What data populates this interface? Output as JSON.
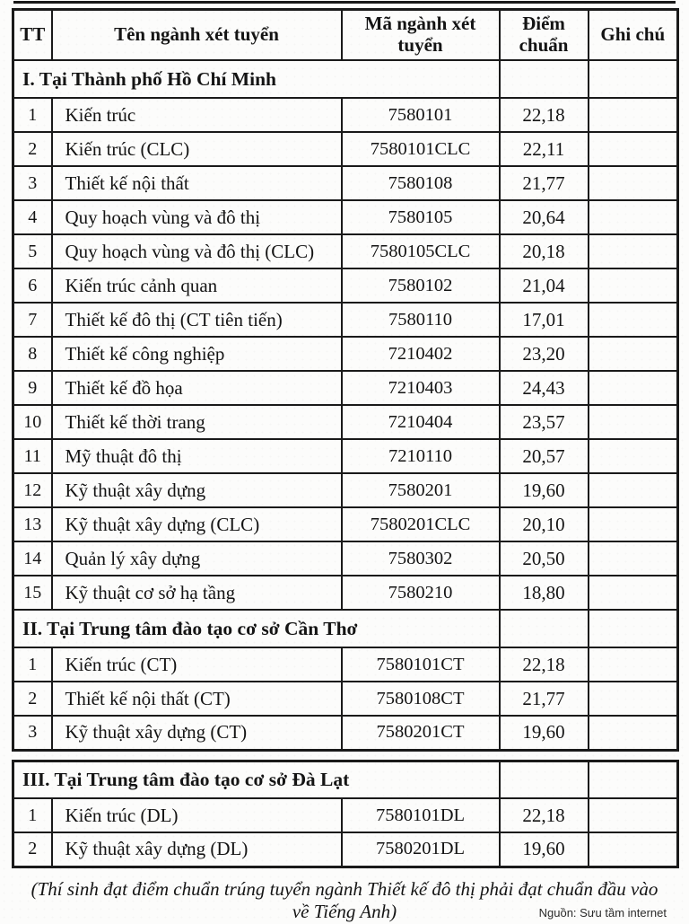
{
  "table": {
    "headers": [
      "TT",
      "Tên ngành xét tuyển",
      "Mã ngành xét tuyển",
      "Điểm chuẩn",
      "Ghi chú"
    ],
    "sections": [
      {
        "title": "I. Tại Thành phố Hồ Chí Minh",
        "rows": [
          {
            "tt": "1",
            "name": "Kiến trúc",
            "code": "7580101",
            "score": "22,18",
            "note": ""
          },
          {
            "tt": "2",
            "name": "Kiến trúc (CLC)",
            "code": "7580101CLC",
            "score": "22,11",
            "note": ""
          },
          {
            "tt": "3",
            "name": "Thiết kế nội thất",
            "code": "7580108",
            "score": "21,77",
            "note": ""
          },
          {
            "tt": "4",
            "name": "Quy hoạch vùng và đô thị",
            "code": "7580105",
            "score": "20,64",
            "note": ""
          },
          {
            "tt": "5",
            "name": "Quy hoạch vùng và đô thị (CLC)",
            "code": "7580105CLC",
            "score": "20,18",
            "note": ""
          },
          {
            "tt": "6",
            "name": "Kiến trúc cảnh quan",
            "code": "7580102",
            "score": "21,04",
            "note": ""
          },
          {
            "tt": "7",
            "name": "Thiết kế đô thị (CT tiên tiến)",
            "code": "7580110",
            "score": "17,01",
            "note": ""
          },
          {
            "tt": "8",
            "name": "Thiết kế công nghiệp",
            "code": "7210402",
            "score": "23,20",
            "note": ""
          },
          {
            "tt": "9",
            "name": "Thiết kế đồ họa",
            "code": "7210403",
            "score": "24,43",
            "note": ""
          },
          {
            "tt": "10",
            "name": "Thiết kế thời trang",
            "code": "7210404",
            "score": "23,57",
            "note": ""
          },
          {
            "tt": "11",
            "name": "Mỹ thuật đô thị",
            "code": "7210110",
            "score": "20,57",
            "note": ""
          },
          {
            "tt": "12",
            "name": "Kỹ thuật xây dựng",
            "code": "7580201",
            "score": "19,60",
            "note": ""
          },
          {
            "tt": "13",
            "name": "Kỹ thuật xây dựng (CLC)",
            "code": "7580201CLC",
            "score": "20,10",
            "note": ""
          },
          {
            "tt": "14",
            "name": "Quản lý xây dựng",
            "code": "7580302",
            "score": "20,50",
            "note": ""
          },
          {
            "tt": "15",
            "name": "Kỹ thuật cơ sở hạ tầng",
            "code": "7580210",
            "score": "18,80",
            "note": ""
          }
        ]
      },
      {
        "title": "II. Tại Trung tâm đào tạo cơ sở Cần Thơ",
        "rows": [
          {
            "tt": "1",
            "name": "Kiến trúc (CT)",
            "code": "7580101CT",
            "score": "22,18",
            "note": ""
          },
          {
            "tt": "2",
            "name": "Thiết kế nội thất (CT)",
            "code": "7580108CT",
            "score": "21,77",
            "note": ""
          },
          {
            "tt": "3",
            "name": "Kỹ thuật xây dựng (CT)",
            "code": "7580201CT",
            "score": "19,60",
            "note": ""
          }
        ]
      },
      {
        "title": "III. Tại Trung tâm đào tạo cơ sở Đà Lạt",
        "rows": [
          {
            "tt": "1",
            "name": "Kiến trúc (DL)",
            "code": "7580101DL",
            "score": "22,18",
            "note": ""
          },
          {
            "tt": "2",
            "name": "Kỹ thuật xây dựng (DL)",
            "code": "7580201DL",
            "score": "19,60",
            "note": ""
          }
        ]
      }
    ]
  },
  "footer": {
    "note": "(Thí sinh đạt điểm chuẩn trúng tuyển ngành Thiết kế đô thị phải đạt chuẩn đầu vào về Tiếng Anh)",
    "source": "Nguồn: Sưu tầm internet"
  }
}
